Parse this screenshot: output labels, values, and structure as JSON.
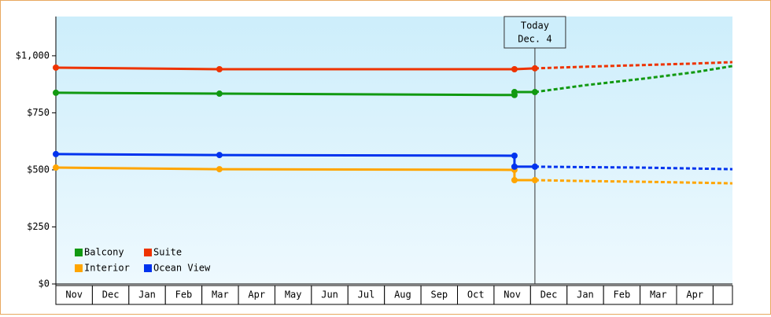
{
  "chart_data": {
    "type": "line",
    "categories": [
      "Nov",
      "Dec",
      "Jan",
      "Feb",
      "Mar",
      "Apr",
      "May",
      "Jun",
      "Jul",
      "Aug",
      "Sep",
      "Oct",
      "Nov",
      "Dec",
      "Jan",
      "Feb",
      "Mar",
      "Apr"
    ],
    "xlim": [
      0,
      18.53
    ],
    "ylim": [
      0,
      1172
    ],
    "yticks": [
      {
        "value": 0,
        "label": "$0"
      },
      {
        "value": 250,
        "label": "$250"
      },
      {
        "value": 500,
        "label": "$500"
      },
      {
        "value": 750,
        "label": "$750"
      },
      {
        "value": 1000,
        "label": "$1,000"
      }
    ],
    "annotation": {
      "x": 13.12,
      "lines": [
        "Today",
        "Dec. 4"
      ]
    },
    "series": [
      {
        "name": "Balcony",
        "color": "#119911",
        "x": [
          0,
          4.48,
          12.56,
          12.56,
          13.12
        ],
        "values": [
          838,
          834,
          828,
          841,
          841
        ],
        "forecast_x": [
          13.12,
          14.5,
          16,
          17.5,
          18.53
        ],
        "forecast_values": [
          841,
          871,
          898,
          928,
          955
        ]
      },
      {
        "name": "Suite",
        "color": "#ee3300",
        "x": [
          0,
          4.48,
          12.56,
          13.12
        ],
        "values": [
          948,
          941,
          941,
          945
        ],
        "forecast_x": [
          13.12,
          14.5,
          16,
          17.5,
          18.53
        ],
        "forecast_values": [
          945,
          952,
          959,
          966,
          972
        ]
      },
      {
        "name": "Interior",
        "color": "#ffa500",
        "x": [
          0,
          4.48,
          12.56,
          12.56,
          13.12
        ],
        "values": [
          510,
          503,
          500,
          455,
          455
        ],
        "forecast_x": [
          13.12,
          14.5,
          16,
          17.5,
          18.53
        ],
        "forecast_values": [
          455,
          451,
          448,
          444,
          441
        ]
      },
      {
        "name": "Ocean View",
        "color": "#0033ee",
        "x": [
          0,
          4.48,
          12.56,
          12.56,
          13.12
        ],
        "values": [
          569,
          565,
          562,
          514,
          514
        ],
        "forecast_x": [
          13.12,
          14.5,
          16,
          17.5,
          18.53
        ],
        "forecast_values": [
          514,
          512,
          510,
          506,
          503
        ]
      }
    ]
  }
}
